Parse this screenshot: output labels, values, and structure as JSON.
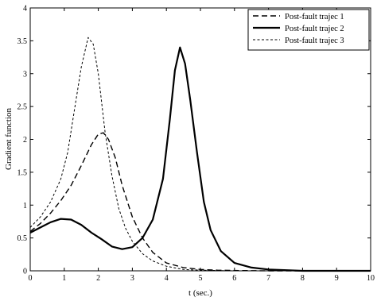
{
  "chart_data": {
    "type": "line",
    "title": "",
    "xlabel": "t (sec.)",
    "ylabel": "Gradient function",
    "xlim": [
      0,
      10
    ],
    "ylim": [
      0,
      4
    ],
    "x_ticks": [
      "0",
      "1",
      "2",
      "3",
      "4",
      "5",
      "6",
      "7",
      "8",
      "9",
      "10"
    ],
    "y_ticks": [
      "0",
      "0.5",
      "1",
      "1.5",
      "2",
      "2.5",
      "3",
      "3.5",
      "4"
    ],
    "grid": false,
    "legend_position": "top-right",
    "series": [
      {
        "name": "Post-fault trajec 1",
        "style": "dashed",
        "color": "#000000",
        "x": [
          0.0,
          0.3,
          0.6,
          0.9,
          1.2,
          1.5,
          1.8,
          2.0,
          2.15,
          2.3,
          2.5,
          2.7,
          3.0,
          3.3,
          3.6,
          4.0,
          4.5,
          5.0,
          5.5,
          6.0,
          7.0,
          8.0,
          9.0,
          10.0
        ],
        "y": [
          0.6,
          0.72,
          0.88,
          1.07,
          1.3,
          1.6,
          1.92,
          2.08,
          2.1,
          2.0,
          1.72,
          1.3,
          0.82,
          0.5,
          0.28,
          0.12,
          0.05,
          0.02,
          0.01,
          0.005,
          0.0,
          0.0,
          0.0,
          0.0
        ]
      },
      {
        "name": "Post-fault trajec 2",
        "style": "solid",
        "color": "#000000",
        "x": [
          0.0,
          0.3,
          0.6,
          0.9,
          1.2,
          1.5,
          1.8,
          2.1,
          2.4,
          2.7,
          3.0,
          3.3,
          3.6,
          3.9,
          4.1,
          4.25,
          4.4,
          4.55,
          4.7,
          4.9,
          5.1,
          5.3,
          5.6,
          6.0,
          6.5,
          7.0,
          8.0,
          9.0,
          10.0
        ],
        "y": [
          0.58,
          0.66,
          0.74,
          0.79,
          0.78,
          0.7,
          0.58,
          0.48,
          0.37,
          0.33,
          0.36,
          0.5,
          0.78,
          1.4,
          2.3,
          3.05,
          3.4,
          3.15,
          2.6,
          1.8,
          1.05,
          0.62,
          0.3,
          0.12,
          0.05,
          0.02,
          0.0,
          0.0,
          0.0
        ]
      },
      {
        "name": "Post-fault trajec 3",
        "style": "short-dashed",
        "color": "#000000",
        "x": [
          0.0,
          0.3,
          0.6,
          0.9,
          1.1,
          1.3,
          1.5,
          1.7,
          1.85,
          2.0,
          2.2,
          2.4,
          2.6,
          2.8,
          3.0,
          3.3,
          3.6,
          4.0,
          4.5,
          5.0,
          6.0,
          7.0,
          8.0,
          9.0,
          10.0
        ],
        "y": [
          0.66,
          0.82,
          1.05,
          1.4,
          1.8,
          2.45,
          3.1,
          3.55,
          3.45,
          3.0,
          2.1,
          1.45,
          0.95,
          0.65,
          0.45,
          0.26,
          0.15,
          0.07,
          0.02,
          0.01,
          0.0,
          0.0,
          0.0,
          0.0,
          0.0
        ]
      }
    ]
  }
}
